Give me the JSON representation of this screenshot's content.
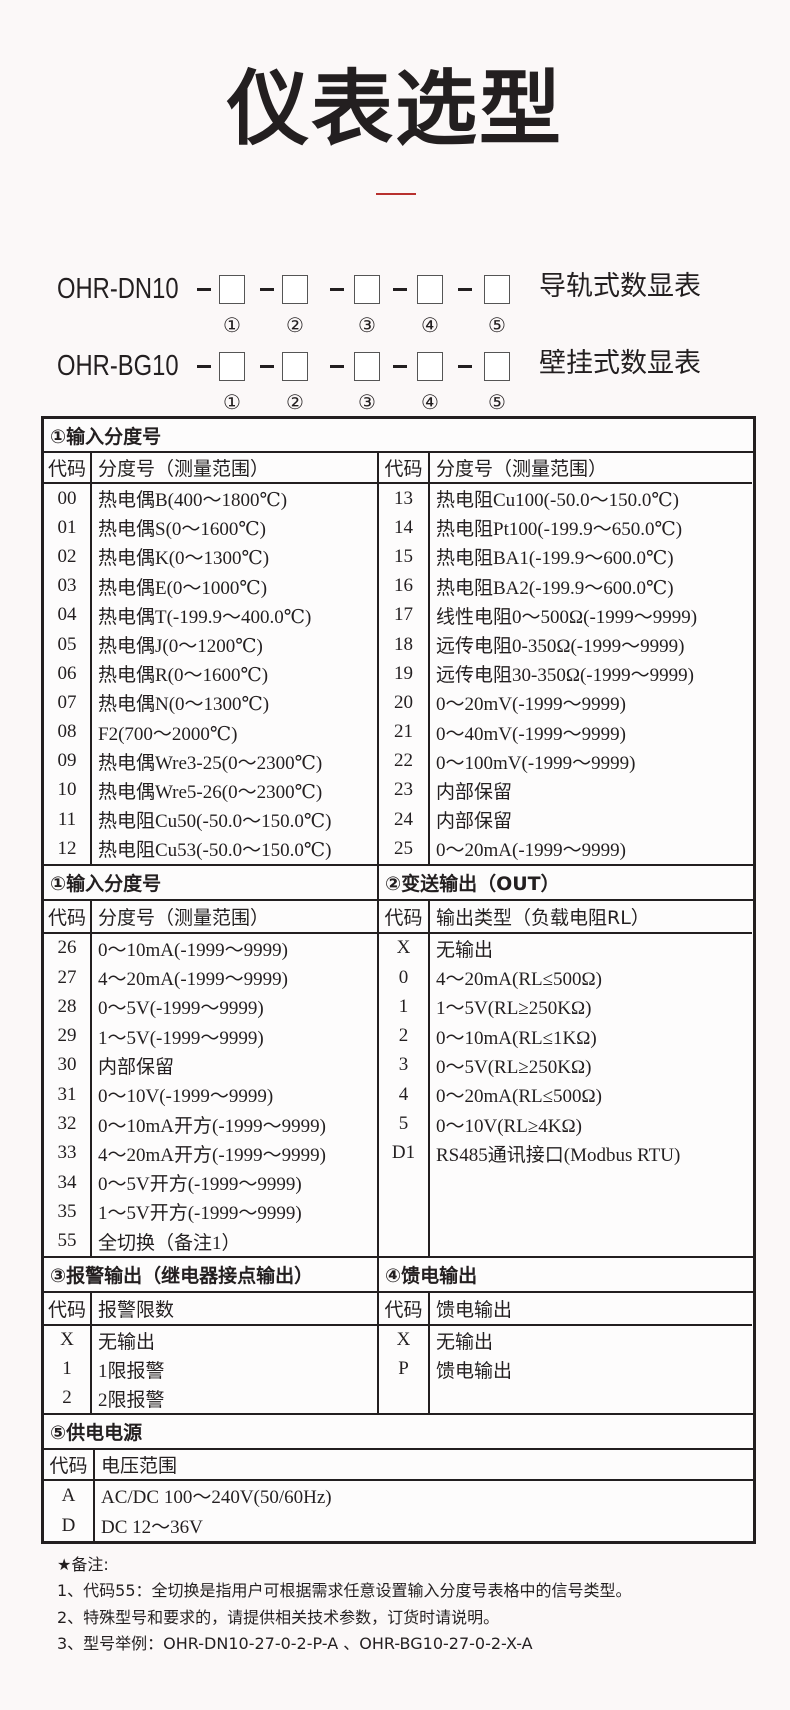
{
  "title": "仪表选型",
  "accent_color": "#b8312f",
  "models": [
    {
      "name": "OHR-DN10",
      "desc": "导轨式数显表",
      "slots": [
        "①",
        "②",
        "③",
        "④",
        "⑤"
      ]
    },
    {
      "name": "OHR-BG10",
      "desc": "壁挂式数显表",
      "slots": [
        "①",
        "②",
        "③",
        "④",
        "⑤"
      ]
    }
  ],
  "table": {
    "sections": [
      {
        "halves": [
          {
            "title": "①输入分度号",
            "code_header": "代码",
            "desc_header": "分度号（测量范围）",
            "span": true,
            "col2_code_header": "代码",
            "col2_desc_header": "分度号（测量范围）",
            "rows": [
              [
                "00",
                "热电偶B(400～1800℃)"
              ],
              [
                "01",
                "热电偶S(0～1600℃)"
              ],
              [
                "02",
                "热电偶K(0～1300℃)"
              ],
              [
                "03",
                "热电偶E(0～1000℃)"
              ],
              [
                "04",
                "热电偶T(-199.9～400.0℃)"
              ],
              [
                "05",
                "热电偶J(0～1200℃)"
              ],
              [
                "06",
                "热电偶R(0～1600℃)"
              ],
              [
                "07",
                "热电偶N(0～1300℃)"
              ],
              [
                "08",
                "F2(700～2000℃)"
              ],
              [
                "09",
                "热电偶Wre3-25(0～2300℃)"
              ],
              [
                "10",
                "热电偶Wre5-26(0～2300℃)"
              ],
              [
                "11",
                "热电阻Cu50(-50.0～150.0℃)"
              ],
              [
                "12",
                "热电阻Cu53(-50.0～150.0℃)"
              ]
            ],
            "rows2": [
              [
                "13",
                "热电阻Cu100(-50.0～150.0℃)"
              ],
              [
                "14",
                "热电阻Pt100(-199.9～650.0℃)"
              ],
              [
                "15",
                "热电阻BA1(-199.9～600.0℃)"
              ],
              [
                "16",
                "热电阻BA2(-199.9～600.0℃)"
              ],
              [
                "17",
                "线性电阻0～500Ω(-1999～9999)"
              ],
              [
                "18",
                "远传电阻0-350Ω(-1999～9999)"
              ],
              [
                "19",
                "远传电阻30-350Ω(-1999～9999)"
              ],
              [
                "20",
                "0～20mV(-1999～9999)"
              ],
              [
                "21",
                "0～40mV(-1999～9999)"
              ],
              [
                "22",
                "0～100mV(-1999～9999)"
              ],
              [
                "23",
                "内部保留"
              ],
              [
                "24",
                "内部保留"
              ],
              [
                "25",
                "0～20mA(-1999～9999)"
              ]
            ]
          }
        ]
      },
      {
        "halves": [
          {
            "title": "①输入分度号",
            "code_header": "代码",
            "desc_header": "分度号（测量范围）",
            "rows": [
              [
                "26",
                "0～10mA(-1999～9999)"
              ],
              [
                "27",
                "4～20mA(-1999～9999)"
              ],
              [
                "28",
                "0～5V(-1999～9999)"
              ],
              [
                "29",
                "1～5V(-1999～9999)"
              ],
              [
                "30",
                "内部保留"
              ],
              [
                "31",
                "0～10V(-1999～9999)"
              ],
              [
                "32",
                "0～10mA开方(-1999～9999)"
              ],
              [
                "33",
                "4～20mA开方(-1999～9999)"
              ],
              [
                "34",
                "0～5V开方(-1999～9999)"
              ],
              [
                "35",
                "1～5V开方(-1999～9999)"
              ],
              [
                "55",
                "全切换（备注1）"
              ]
            ]
          },
          {
            "title": "②变送输出（OUT）",
            "code_header": "代码",
            "desc_header": "输出类型（负载电阻RL）",
            "rows": [
              [
                "X",
                "无输出"
              ],
              [
                "0",
                "4～20mA(RL≤500Ω)"
              ],
              [
                "1",
                "1～5V(RL≥250KΩ)"
              ],
              [
                "2",
                "0～10mA(RL≤1KΩ)"
              ],
              [
                "3",
                "0～5V(RL≥250KΩ)"
              ],
              [
                "4",
                "0～20mA(RL≤500Ω)"
              ],
              [
                "5",
                "0～10V(RL≥4KΩ)"
              ],
              [
                "D1",
                "RS485通讯接口(Modbus RTU)"
              ]
            ]
          }
        ]
      },
      {
        "halves": [
          {
            "title": "③报警输出（继电器接点输出）",
            "code_header": "代码",
            "desc_header": "报警限数",
            "rows": [
              [
                "X",
                "无输出"
              ],
              [
                "1",
                "1限报警"
              ],
              [
                "2",
                "2限报警"
              ]
            ]
          },
          {
            "title": "④馈电输出",
            "code_header": "代码",
            "desc_header": "馈电输出",
            "rows": [
              [
                "X",
                "无输出"
              ],
              [
                "P",
                "馈电输出"
              ]
            ]
          }
        ]
      },
      {
        "halves": [
          {
            "title": "⑤供电电源",
            "code_header": "代码",
            "desc_header": "电压范围",
            "rows": [
              [
                "A",
                "AC/DC 100～240V(50/60Hz)"
              ],
              [
                "D",
                "DC 12～36V"
              ]
            ]
          }
        ]
      }
    ]
  },
  "notes": {
    "heading": "★备注:",
    "items": [
      "1、代码55：全切换是指用户可根据需求任意设置输入分度号表格中的信号类型。",
      "2、特殊型号和要求的，请提供相关技术参数，订货时请说明。",
      "3、型号举例：OHR-DN10-27-0-2-P-A 、OHR-BG10-27-0-2-X-A"
    ]
  }
}
